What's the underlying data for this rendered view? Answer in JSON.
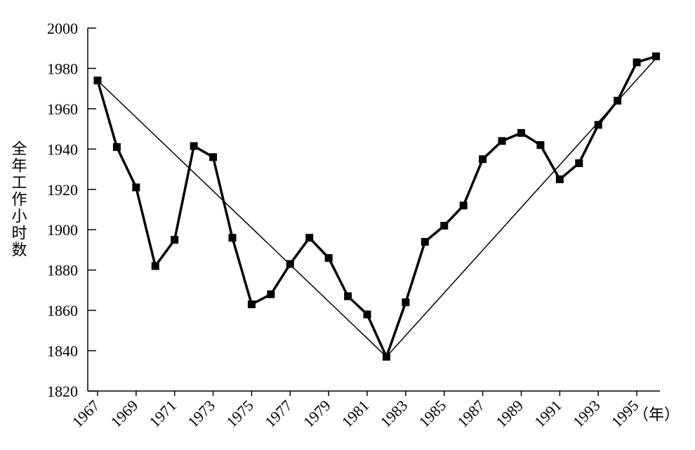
{
  "chart_data": {
    "type": "line",
    "y_label": "全年工作小时数",
    "x_unit_label": "（年）",
    "x": [
      1967,
      1968,
      1969,
      1970,
      1971,
      1972,
      1973,
      1974,
      1975,
      1976,
      1977,
      1978,
      1979,
      1980,
      1981,
      1982,
      1983,
      1984,
      1985,
      1986,
      1987,
      1988,
      1989,
      1990,
      1991,
      1992,
      1993,
      1994,
      1995,
      1996
    ],
    "series": [
      {
        "color": "#000000",
        "values": [
          1974,
          1941,
          1921,
          1882,
          1895,
          1941.5,
          1936,
          1896,
          1863,
          1868,
          1883,
          1896,
          1886,
          1867,
          1858,
          1837,
          1864,
          1894,
          1902,
          1912,
          1935,
          1944,
          1948,
          1942,
          1925,
          1933,
          1952,
          1964,
          1983,
          1986
        ]
      }
    ],
    "trend_line": {
      "x": [
        1967,
        1982,
        1996
      ],
      "values": [
        1974,
        1837,
        1985
      ],
      "color": "#000000"
    },
    "xlim": [
      1966.49,
      1996.2
    ],
    "xticks": [
      1967,
      1969,
      1971,
      1973,
      1975,
      1977,
      1979,
      1981,
      1983,
      1985,
      1987,
      1989,
      1991,
      1993,
      1995
    ],
    "ylim": [
      1820,
      2000
    ],
    "yticks": [
      1820,
      1840,
      1860,
      1880,
      1900,
      1920,
      1940,
      1960,
      1980,
      2000
    ]
  }
}
